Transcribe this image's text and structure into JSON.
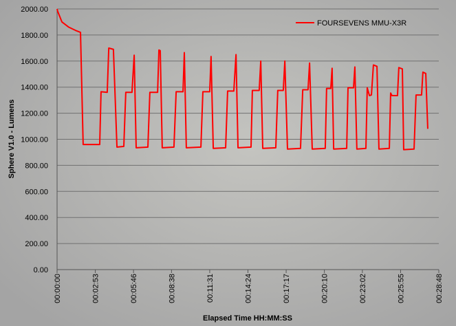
{
  "chart_data": {
    "type": "line",
    "xlabel": "Elapsed Time HH:MM:SS",
    "ylabel": "Sphere V1.0 - Lumens",
    "xlim": [
      0,
      1728
    ],
    "xticks": [
      {
        "value": 0,
        "label": "00:00:00"
      },
      {
        "value": 173,
        "label": "00:02:53"
      },
      {
        "value": 346,
        "label": "00:05:46"
      },
      {
        "value": 518,
        "label": "00:08:38"
      },
      {
        "value": 691,
        "label": "00:11:31"
      },
      {
        "value": 864,
        "label": "00:14:24"
      },
      {
        "value": 1037,
        "label": "00:17:17"
      },
      {
        "value": 1210,
        "label": "00:20:10"
      },
      {
        "value": 1382,
        "label": "00:23:02"
      },
      {
        "value": 1555,
        "label": "00:25:55"
      },
      {
        "value": 1728,
        "label": "00:28:48"
      }
    ],
    "ylim": [
      0,
      2000
    ],
    "yticks": [
      {
        "value": 0,
        "label": "0.00"
      },
      {
        "value": 200,
        "label": "200.00"
      },
      {
        "value": 400,
        "label": "400.00"
      },
      {
        "value": 600,
        "label": "600.00"
      },
      {
        "value": 800,
        "label": "800.00"
      },
      {
        "value": 1000,
        "label": "1000.00"
      },
      {
        "value": 1200,
        "label": "1200.00"
      },
      {
        "value": 1400,
        "label": "1400.00"
      },
      {
        "value": 1600,
        "label": "1600.00"
      },
      {
        "value": 1800,
        "label": "1800.00"
      },
      {
        "value": 2000,
        "label": "2000.00"
      }
    ],
    "grid": true,
    "legend": "top-right",
    "x": [
      0,
      3,
      22,
      53,
      84,
      106,
      118,
      193,
      199,
      227,
      234,
      255,
      271,
      302,
      311,
      339,
      349,
      358,
      411,
      420,
      455,
      461,
      467,
      476,
      529,
      539,
      570,
      576,
      585,
      651,
      660,
      691,
      697,
      707,
      763,
      772,
      800,
      810,
      819,
      878,
      884,
      915,
      922,
      931,
      990,
      999,
      1024,
      1031,
      1043,
      1102,
      1112,
      1136,
      1143,
      1155,
      1214,
      1220,
      1239,
      1245,
      1252,
      1311,
      1317,
      1342,
      1348,
      1357,
      1398,
      1404,
      1414,
      1423,
      1432,
      1448,
      1457,
      1504,
      1510,
      1516,
      1541,
      1547,
      1563,
      1569,
      1616,
      1625,
      1650,
      1656,
      1669,
      1678
    ],
    "series": [
      {
        "name": "FOURSEVENS MMU-X3R",
        "color": "#ff0000",
        "values": [
          2000,
          1980,
          1900,
          1860,
          1835,
          1820,
          960,
          960,
          1365,
          1360,
          1700,
          1690,
          940,
          945,
          1360,
          1360,
          1645,
          935,
          940,
          1360,
          1360,
          1685,
          1680,
          935,
          940,
          1365,
          1365,
          1665,
          935,
          940,
          1365,
          1365,
          1635,
          930,
          935,
          1370,
          1370,
          1650,
          935,
          940,
          1375,
          1375,
          1600,
          930,
          935,
          1375,
          1375,
          1600,
          925,
          930,
          1380,
          1380,
          1585,
          925,
          930,
          1390,
          1390,
          1545,
          925,
          930,
          1395,
          1395,
          1555,
          925,
          930,
          1395,
          1335,
          1340,
          1570,
          1560,
          925,
          930,
          1355,
          1335,
          1335,
          1550,
          1540,
          920,
          925,
          1340,
          1340,
          1515,
          1505,
          1080
        ]
      }
    ]
  }
}
